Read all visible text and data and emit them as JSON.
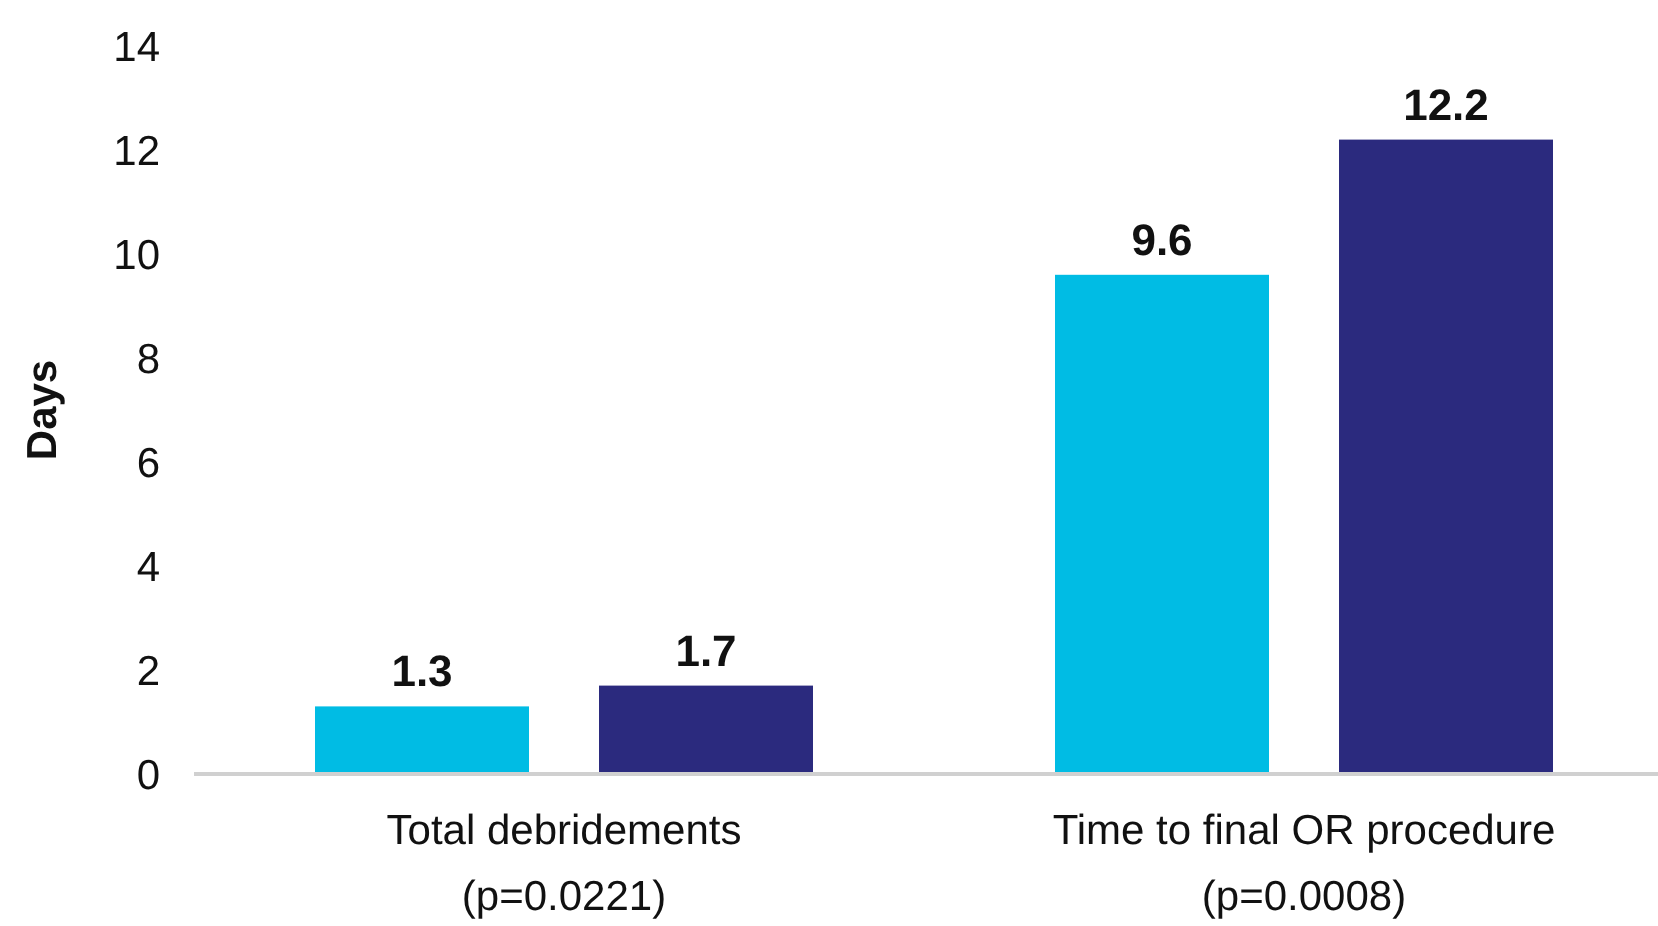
{
  "chart_data": {
    "type": "bar",
    "ylabel": "Days",
    "categories": [
      "Total debridements\n(p=0.0221)",
      "Time to final OR procedure\n(p=0.0008)"
    ],
    "series": [
      {
        "color": "#00bce4",
        "values": [
          1.3,
          9.6
        ]
      },
      {
        "color": "#2b2a7e",
        "values": [
          1.7,
          12.2
        ]
      }
    ],
    "ylim": [
      0,
      14
    ],
    "yticks": [
      0,
      2,
      4,
      6,
      8,
      10,
      12,
      14
    ],
    "data_labels": true,
    "grid": false
  }
}
